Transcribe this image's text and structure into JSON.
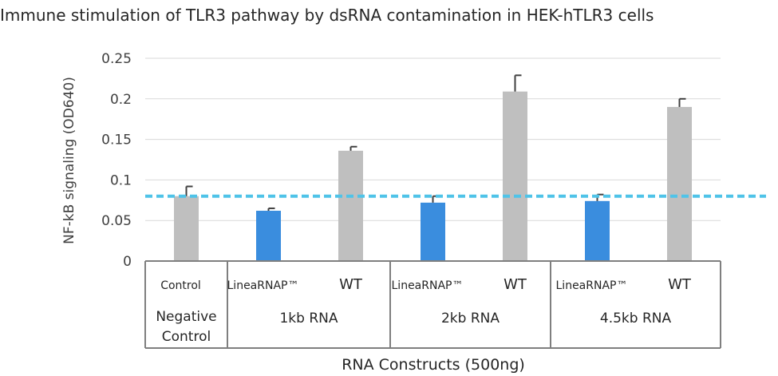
{
  "chart_data": {
    "type": "bar",
    "title": "Immune stimulation of TLR3 pathway by dsRNA contamination in HEK-hTLR3 cells",
    "ylabel": "NF-kB signaling (OD640)",
    "xlabel": "RNA Constructs (500ng)",
    "ylim": [
      0,
      0.25
    ],
    "yticks": [
      "0",
      "0.05",
      "0.1",
      "0.15",
      "0.2",
      "0.25"
    ],
    "grid": true,
    "reference_line": {
      "value": 0.08,
      "color": "#4FC3E8",
      "style": "dashed"
    },
    "colors": {
      "linearnap": "#3A8DDE",
      "other": "#BFBFBF",
      "axis": "#7F7F7F",
      "grid": "#D9D9D9",
      "errorbar": "#404040"
    },
    "groups": [
      {
        "label_lines": [
          "Negative",
          "Control"
        ]
      },
      {
        "label_lines": [
          "1kb RNA"
        ]
      },
      {
        "label_lines": [
          "2kb RNA"
        ]
      },
      {
        "label_lines": [
          "4.5kb RNA"
        ]
      }
    ],
    "bars": [
      {
        "label": "Control",
        "value": 0.08,
        "error": 0.012,
        "color_key": "other",
        "group": 0
      },
      {
        "label": "LineaRNAP™",
        "value": 0.062,
        "error": 0.003,
        "color_key": "linearnap",
        "group": 1
      },
      {
        "label": "WT",
        "value": 0.136,
        "error": 0.005,
        "color_key": "other",
        "group": 1
      },
      {
        "label": "LineaRNAP™",
        "value": 0.072,
        "error": 0.008,
        "color_key": "linearnap",
        "group": 2
      },
      {
        "label": "WT",
        "value": 0.209,
        "error": 0.02,
        "color_key": "other",
        "group": 2
      },
      {
        "label": "LineaRNAP™",
        "value": 0.074,
        "error": 0.008,
        "color_key": "linearnap",
        "group": 3
      },
      {
        "label": "WT",
        "value": 0.19,
        "error": 0.01,
        "color_key": "other",
        "group": 3
      }
    ]
  }
}
